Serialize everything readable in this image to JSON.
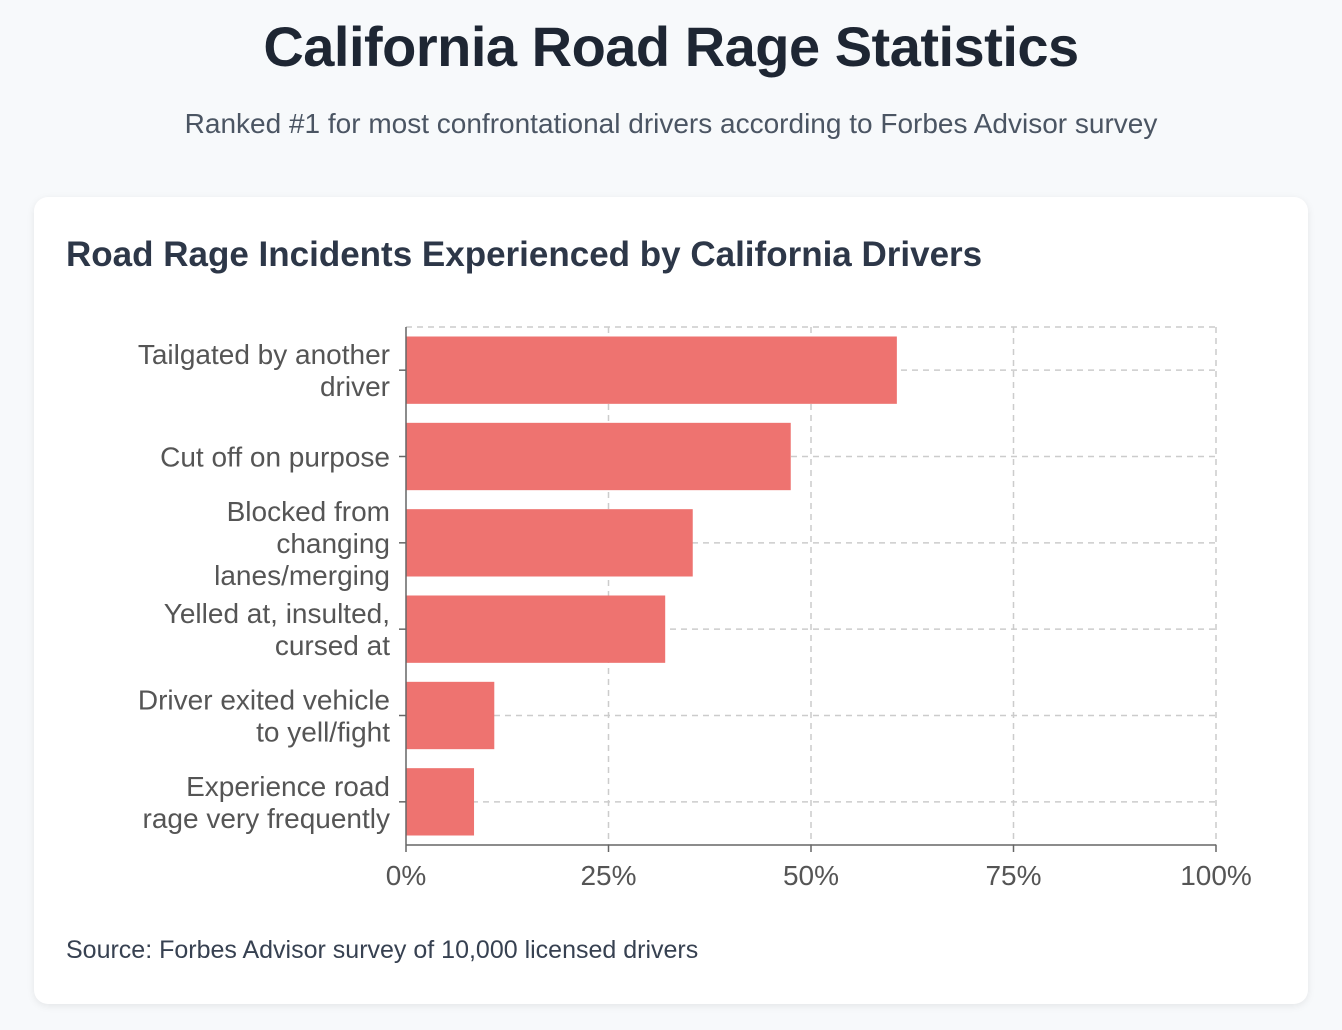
{
  "header": {
    "title": "California Road Rage Statistics",
    "subtitle": "Ranked #1 for most confrontational drivers according to Forbes Advisor survey"
  },
  "chart_card": {
    "title": "Road Rage Incidents Experienced by California Drivers",
    "source": "Source: Forbes Advisor survey of 10,000 licensed drivers"
  },
  "colors": {
    "bar": "#ee7370",
    "grid": "#cccccc",
    "axis": "#666666"
  },
  "chart_data": {
    "type": "bar",
    "orientation": "horizontal",
    "categories": [
      [
        "Tailgated by another",
        "driver"
      ],
      [
        "Cut off on purpose"
      ],
      [
        "Blocked from",
        "changing",
        "lanes/merging"
      ],
      [
        "Yelled at, insulted,",
        "cursed at"
      ],
      [
        "Driver exited vehicle",
        "to yell/fight"
      ],
      [
        "Experience road",
        "rage very frequently"
      ]
    ],
    "values": [
      60.6,
      47.5,
      35.4,
      32.0,
      10.9,
      8.4
    ],
    "xlim": [
      0,
      100
    ],
    "xticks": [
      "0%",
      "25%",
      "50%",
      "75%",
      "100%"
    ],
    "grid": true,
    "legend": "none"
  }
}
